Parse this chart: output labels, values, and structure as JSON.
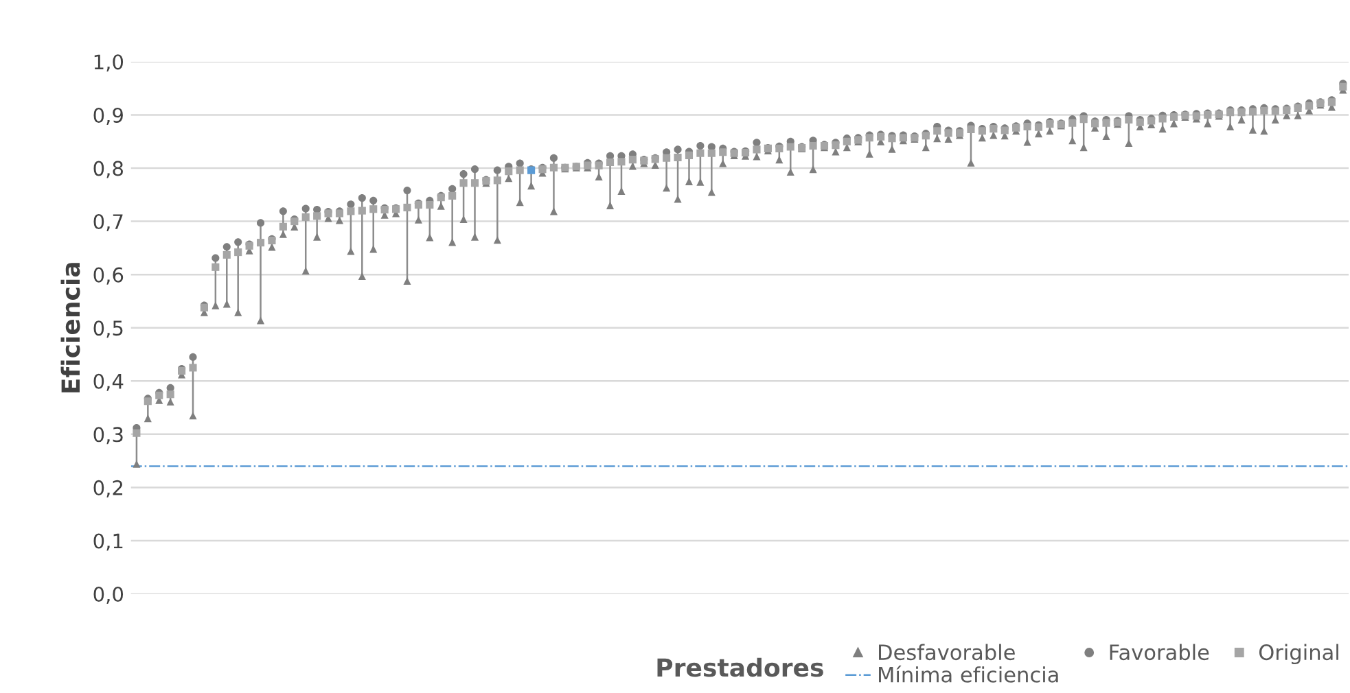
{
  "chart_data": {
    "type": "scatter",
    "xlabel": "Prestadores",
    "ylabel": "Eficiencia",
    "categories": [
      null,
      null,
      null,
      null,
      null,
      null,
      null,
      null,
      null,
      null,
      null,
      null,
      null,
      null,
      null,
      null,
      null,
      null,
      null,
      null,
      null,
      null,
      null,
      null,
      null,
      null,
      null,
      null,
      null,
      null,
      null,
      null,
      null,
      null,
      null,
      null,
      null,
      null,
      null,
      null,
      null,
      null,
      null,
      null,
      null,
      null,
      null,
      null,
      null,
      null,
      null,
      null,
      null,
      null,
      null,
      null,
      null,
      null,
      null,
      null,
      null,
      null,
      null,
      null,
      null,
      null,
      null,
      null,
      null,
      null,
      null,
      null,
      null,
      null,
      null,
      null,
      null,
      null,
      null,
      null,
      null,
      null,
      null,
      null,
      null,
      null,
      null,
      null,
      null,
      null,
      null,
      null,
      null,
      null,
      null,
      null,
      null,
      null,
      null,
      null,
      null,
      null,
      null,
      null,
      null,
      null,
      null,
      null
    ],
    "series": [
      {
        "name": "Desfavorable",
        "color": "#7f7f7f",
        "marker": "triangle",
        "values": [
          0.244,
          0.33,
          0.364,
          0.361,
          0.412,
          0.335,
          0.529,
          0.542,
          0.545,
          0.529,
          0.645,
          0.514,
          0.652,
          0.676,
          0.69,
          0.607,
          0.671,
          0.706,
          0.702,
          0.644,
          0.597,
          0.648,
          0.712,
          0.715,
          0.588,
          0.703,
          0.67,
          0.729,
          0.661,
          0.704,
          0.671,
          0.772,
          0.665,
          0.781,
          0.736,
          0.767,
          0.791,
          0.719,
          0.799,
          0.801,
          0.801,
          0.784,
          0.73,
          0.757,
          0.804,
          0.809,
          0.806,
          0.763,
          0.742,
          0.775,
          0.774,
          0.755,
          0.809,
          0.824,
          0.823,
          0.822,
          0.833,
          0.816,
          0.793,
          0.837,
          0.798,
          0.839,
          0.831,
          0.839,
          0.85,
          0.827,
          0.85,
          0.836,
          0.852,
          0.855,
          0.839,
          0.856,
          0.855,
          0.862,
          0.81,
          0.857,
          0.862,
          0.861,
          0.87,
          0.849,
          0.865,
          0.87,
          0.88,
          0.852,
          0.839,
          0.876,
          0.86,
          0.883,
          0.847,
          0.878,
          0.882,
          0.874,
          0.884,
          0.896,
          0.893,
          0.884,
          0.898,
          0.878,
          0.891,
          0.872,
          0.87,
          0.891,
          0.899,
          0.899,
          0.908,
          0.919,
          0.915,
          0.947
        ]
      },
      {
        "name": "Favorable",
        "color": "#7f7f7f",
        "marker": "circle",
        "values": [
          0.312,
          0.367,
          0.378,
          0.387,
          0.423,
          0.445,
          0.542,
          0.631,
          0.652,
          0.661,
          0.657,
          0.697,
          0.667,
          0.719,
          0.704,
          0.724,
          0.722,
          0.718,
          0.719,
          0.732,
          0.744,
          0.739,
          0.725,
          0.725,
          0.758,
          0.734,
          0.739,
          0.748,
          0.761,
          0.789,
          0.798,
          0.778,
          0.796,
          0.803,
          0.809,
          0.798,
          0.801,
          0.819,
          0.801,
          0.803,
          0.81,
          0.809,
          0.823,
          0.823,
          0.826,
          0.816,
          0.819,
          0.83,
          0.835,
          0.831,
          0.842,
          0.84,
          0.837,
          0.831,
          0.832,
          0.848,
          0.838,
          0.841,
          0.85,
          0.84,
          0.852,
          0.844,
          0.848,
          0.856,
          0.857,
          0.862,
          0.863,
          0.861,
          0.862,
          0.86,
          0.865,
          0.878,
          0.871,
          0.87,
          0.88,
          0.874,
          0.878,
          0.875,
          0.879,
          0.884,
          0.881,
          0.887,
          0.884,
          0.892,
          0.898,
          0.888,
          0.891,
          0.889,
          0.898,
          0.891,
          0.893,
          0.899,
          0.9,
          0.901,
          0.902,
          0.903,
          0.903,
          0.909,
          0.909,
          0.911,
          0.913,
          0.911,
          0.912,
          0.916,
          0.922,
          0.924,
          0.928,
          0.959
        ]
      },
      {
        "name": "Original",
        "color": "#a5a5a5",
        "marker": "square",
        "colors": [
          "#a5a5a5",
          "#a5a5a5",
          "#a5a5a5",
          "#a5a5a5",
          "#a5a5a5",
          "#a5a5a5",
          "#a5a5a5",
          "#a5a5a5",
          "#a5a5a5",
          "#a5a5a5",
          "#a5a5a5",
          "#a5a5a5",
          "#a5a5a5",
          "#a5a5a5",
          "#a5a5a5",
          "#a5a5a5",
          "#a5a5a5",
          "#a5a5a5",
          "#a5a5a5",
          "#a5a5a5",
          "#a5a5a5",
          "#a5a5a5",
          "#a5a5a5",
          "#a5a5a5",
          "#a5a5a5",
          "#a5a5a5",
          "#a5a5a5",
          "#a5a5a5",
          "#a5a5a5",
          "#a5a5a5",
          "#a5a5a5",
          "#a5a5a5",
          "#a5a5a5",
          "#a5a5a5",
          "#a5a5a5",
          "#5b9bd5",
          "#a5a5a5",
          "#a5a5a5",
          "#a5a5a5",
          "#a5a5a5",
          "#a5a5a5",
          "#a5a5a5",
          "#a5a5a5",
          "#a5a5a5",
          "#a5a5a5",
          "#a5a5a5",
          "#a5a5a5",
          "#a5a5a5",
          "#a5a5a5",
          "#a5a5a5",
          "#a5a5a5",
          "#a5a5a5",
          "#a5a5a5",
          "#a5a5a5",
          "#a5a5a5",
          "#a5a5a5",
          "#a5a5a5",
          "#a5a5a5",
          "#a5a5a5",
          "#a5a5a5",
          "#a5a5a5",
          "#a5a5a5",
          "#a5a5a5",
          "#a5a5a5",
          "#a5a5a5",
          "#a5a5a5",
          "#a5a5a5",
          "#a5a5a5",
          "#a5a5a5",
          "#a5a5a5",
          "#a5a5a5",
          "#a5a5a5",
          "#a5a5a5",
          "#a5a5a5",
          "#a5a5a5",
          "#a5a5a5",
          "#a5a5a5",
          "#a5a5a5",
          "#a5a5a5",
          "#a5a5a5",
          "#a5a5a5",
          "#a5a5a5",
          "#a5a5a5",
          "#a5a5a5",
          "#a5a5a5",
          "#a5a5a5",
          "#a5a5a5",
          "#a5a5a5",
          "#a5a5a5",
          "#a5a5a5",
          "#a5a5a5",
          "#a5a5a5",
          "#a5a5a5",
          "#a5a5a5",
          "#a5a5a5",
          "#a5a5a5",
          "#a5a5a5",
          "#a5a5a5",
          "#a5a5a5",
          "#a5a5a5",
          "#a5a5a5",
          "#a5a5a5",
          "#a5a5a5",
          "#a5a5a5",
          "#a5a5a5",
          "#a5a5a5",
          "#a5a5a5",
          "#a5a5a5"
        ],
        "values": [
          0.302,
          0.362,
          0.373,
          0.375,
          0.419,
          0.425,
          0.538,
          0.614,
          0.637,
          0.642,
          0.654,
          0.66,
          0.664,
          0.69,
          0.7,
          0.708,
          0.71,
          0.715,
          0.715,
          0.719,
          0.72,
          0.723,
          0.722,
          0.723,
          0.726,
          0.731,
          0.731,
          0.745,
          0.748,
          0.772,
          0.772,
          0.776,
          0.777,
          0.794,
          0.796,
          0.796,
          0.798,
          0.801,
          0.801,
          0.803,
          0.805,
          0.805,
          0.811,
          0.812,
          0.816,
          0.814,
          0.817,
          0.819,
          0.82,
          0.824,
          0.828,
          0.828,
          0.83,
          0.828,
          0.829,
          0.835,
          0.837,
          0.837,
          0.84,
          0.838,
          0.842,
          0.842,
          0.843,
          0.85,
          0.853,
          0.857,
          0.859,
          0.856,
          0.857,
          0.857,
          0.861,
          0.87,
          0.866,
          0.866,
          0.873,
          0.87,
          0.874,
          0.871,
          0.876,
          0.878,
          0.877,
          0.883,
          0.882,
          0.885,
          0.892,
          0.884,
          0.885,
          0.886,
          0.891,
          0.886,
          0.889,
          0.893,
          0.896,
          0.899,
          0.898,
          0.9,
          0.901,
          0.905,
          0.905,
          0.906,
          0.908,
          0.907,
          0.909,
          0.913,
          0.917,
          0.922,
          0.924,
          0.953
        ]
      }
    ],
    "ylim": [
      0,
      1.0
    ],
    "yticks": [
      {
        "value": 0,
        "label": "0,0"
      },
      {
        "value": 0.1,
        "label": "0,1"
      },
      {
        "value": 0.2,
        "label": "0,2"
      },
      {
        "value": 0.3,
        "label": "0,3"
      },
      {
        "value": 0.4,
        "label": "0,4"
      },
      {
        "value": 0.5,
        "label": "0,5"
      },
      {
        "value": 0.6,
        "label": "0,6"
      },
      {
        "value": 0.7,
        "label": "0,7"
      },
      {
        "value": 0.8,
        "label": "0,8"
      },
      {
        "value": 0.9,
        "label": "0,9"
      },
      {
        "value": 1.0,
        "label": "1,0"
      }
    ],
    "ref_lines": [
      {
        "axis": "y",
        "value": 0.24,
        "label": "Mínima eficiencia",
        "color": "#5b9bd5",
        "line_style": "dashdot"
      }
    ],
    "grid": "y",
    "legend": "bottom right"
  }
}
